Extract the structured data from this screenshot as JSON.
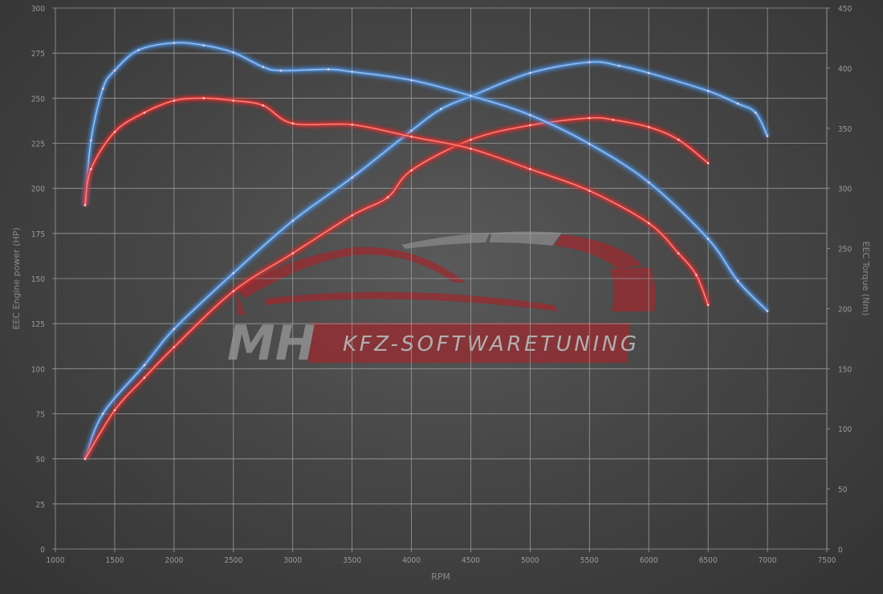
{
  "chart_data": {
    "type": "line",
    "xlabel": "RPM",
    "ylabel": "EEC Engine power (HP)",
    "y2label": "EEC Torque (Nm)",
    "xlim": [
      1000,
      7500
    ],
    "ylim": [
      0,
      300
    ],
    "y2lim": [
      0,
      450
    ],
    "xticks": [
      1000,
      1500,
      2000,
      2500,
      3000,
      3500,
      4000,
      4500,
      5000,
      5500,
      6000,
      6500,
      7000,
      7500
    ],
    "yticks": [
      0,
      25,
      50,
      75,
      100,
      125,
      150,
      175,
      200,
      225,
      250,
      275,
      300
    ],
    "y2ticks": [
      0,
      50,
      100,
      150,
      200,
      250,
      300,
      350,
      400,
      450
    ],
    "grid": true,
    "series": [
      {
        "axis": "left",
        "color": "#4a8fe0",
        "x": [
          1250,
          1400,
          1750,
          2000,
          2500,
          3000,
          3500,
          4000,
          4250,
          4500,
          5000,
          5500,
          5750,
          6000,
          6500,
          6750,
          6900,
          7000
        ],
        "y": [
          50,
          75,
          102,
          122,
          153,
          182,
          206,
          232,
          244,
          251,
          264,
          270,
          268,
          264,
          254,
          247,
          242,
          229
        ]
      },
      {
        "axis": "left",
        "color": "#e03030",
        "x": [
          1250,
          1500,
          1750,
          2000,
          2500,
          3000,
          3500,
          3800,
          4000,
          4500,
          5000,
          5500,
          5700,
          6000,
          6250,
          6500
        ],
        "y": [
          50,
          77,
          95,
          112,
          143,
          164,
          185,
          195,
          210,
          227,
          235,
          239,
          238,
          234,
          227,
          214
        ]
      },
      {
        "axis": "right",
        "color": "#4a8fe0",
        "x": [
          1250,
          1300,
          1400,
          1500,
          1700,
          2000,
          2250,
          2500,
          2750,
          2900,
          3300,
          3500,
          4000,
          4500,
          5000,
          5500,
          6000,
          6500,
          6750,
          7000
        ],
        "y": [
          286,
          340,
          383,
          398,
          415,
          421,
          419,
          413,
          401,
          398,
          399,
          397,
          390,
          377,
          361,
          337,
          305,
          258,
          223,
          198
        ]
      },
      {
        "axis": "right",
        "color": "#e03030",
        "x": [
          1250,
          1300,
          1500,
          1750,
          2000,
          2250,
          2500,
          2750,
          3000,
          3500,
          4000,
          4500,
          5000,
          5500,
          6000,
          6250,
          6400,
          6500
        ],
        "y": [
          286,
          316,
          347,
          363,
          373,
          375,
          373,
          369,
          354,
          353,
          343,
          333,
          316,
          298,
          271,
          246,
          228,
          203
        ]
      }
    ]
  },
  "watermark": {
    "logo_mh": "MH",
    "logo_text": "KFZ-SOFTWARETUNING"
  }
}
